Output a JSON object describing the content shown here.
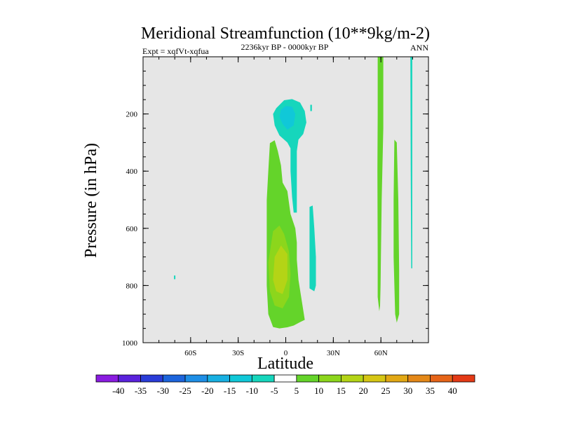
{
  "chart_data": {
    "type": "contour",
    "title": "Meridional Streamfunction (10**9kg/m-2)",
    "subtitle_left": "Expt = xqfVt-xqfua",
    "subtitle_center": "2236kyr BP - 0000kyr BP",
    "subtitle_right": "ANN",
    "xlabel": "Latitude",
    "ylabel": "Pressure (in hPa)",
    "xlim": [
      -90,
      90
    ],
    "ylim": [
      0,
      1000
    ],
    "y_inverted": true,
    "x_ticks": [
      {
        "value": -60,
        "label": "60S"
      },
      {
        "value": -30,
        "label": "30S"
      },
      {
        "value": 0,
        "label": "0"
      },
      {
        "value": 30,
        "label": "30N"
      },
      {
        "value": 60,
        "label": "60N"
      }
    ],
    "y_ticks": [
      {
        "value": 200,
        "label": "200"
      },
      {
        "value": 400,
        "label": "400"
      },
      {
        "value": 600,
        "label": "600"
      },
      {
        "value": 800,
        "label": "800"
      },
      {
        "value": 1000,
        "label": "1000"
      }
    ],
    "background_color": "#e6e6e6",
    "colorbar": {
      "labels": [
        "-40",
        "-35",
        "-30",
        "-25",
        "-20",
        "-15",
        "-10",
        "-5",
        "5",
        "10",
        "15",
        "20",
        "25",
        "30",
        "35",
        "40"
      ],
      "colors": [
        "#8a1ce0",
        "#5a22dc",
        "#2a3cd8",
        "#1c64dc",
        "#1e8ee6",
        "#18b0e2",
        "#10c8d8",
        "#16d6bc",
        "#64d42a",
        "#8cd61c",
        "#b4d416",
        "#d6c614",
        "#e2a814",
        "#e48818",
        "#e66418",
        "#e43a16"
      ]
    },
    "regions": [
      {
        "name": "neg-upper-equator",
        "level": "-5",
        "color": "#16d6bc",
        "points": [
          [
            -6,
            180
          ],
          [
            -1,
            152
          ],
          [
            4,
            148
          ],
          [
            9,
            160
          ],
          [
            12,
            190
          ],
          [
            13,
            230
          ],
          [
            11,
            270
          ],
          [
            8,
            290
          ],
          [
            7,
            330
          ],
          [
            7,
            420
          ],
          [
            7,
            510
          ],
          [
            7,
            545
          ],
          [
            5,
            545
          ],
          [
            4,
            490
          ],
          [
            3,
            400
          ],
          [
            3,
            320
          ],
          [
            1,
            300
          ],
          [
            -4,
            275
          ],
          [
            -7,
            240
          ],
          [
            -8,
            200
          ]
        ]
      },
      {
        "name": "neg-upper-core",
        "level": "-10",
        "color": "#10c8d8",
        "points": [
          [
            -3,
            185
          ],
          [
            0,
            172
          ],
          [
            4,
            175
          ],
          [
            6,
            200
          ],
          [
            5,
            240
          ],
          [
            1,
            255
          ],
          [
            -2,
            235
          ],
          [
            -4,
            210
          ]
        ]
      },
      {
        "name": "neg-lower-15N",
        "level": "-5",
        "color": "#16d6bc",
        "points": [
          [
            15,
            525
          ],
          [
            17,
            520
          ],
          [
            18,
            600
          ],
          [
            19,
            700
          ],
          [
            19,
            800
          ],
          [
            18,
            820
          ],
          [
            15,
            810
          ],
          [
            15,
            700
          ],
          [
            15,
            600
          ]
        ]
      },
      {
        "name": "neg-upper-20N-blip",
        "level": "-5",
        "color": "#16d6bc",
        "points": [
          [
            15.5,
            168
          ],
          [
            16.5,
            168
          ],
          [
            16.5,
            190
          ],
          [
            15.5,
            190
          ]
        ]
      },
      {
        "name": "neg-79N-strip",
        "level": "-5",
        "color": "#16d6bc",
        "points": [
          [
            78.6,
            0
          ],
          [
            79.8,
            0
          ],
          [
            79.8,
            740
          ],
          [
            79.1,
            740
          ],
          [
            78.8,
            400
          ]
        ]
      },
      {
        "name": "neg-70S-dot",
        "level": "-5",
        "color": "#16d6bc",
        "points": [
          [
            -70.5,
            765
          ],
          [
            -69.6,
            765
          ],
          [
            -69.6,
            778
          ],
          [
            -70.5,
            778
          ]
        ]
      },
      {
        "name": "pos-lower-equator",
        "level": "5",
        "color": "#64d42a",
        "points": [
          [
            -10,
            302
          ],
          [
            -7,
            292
          ],
          [
            -5,
            330
          ],
          [
            -3,
            380
          ],
          [
            -2,
            440
          ],
          [
            1,
            470
          ],
          [
            3,
            550
          ],
          [
            6,
            600
          ],
          [
            7,
            650
          ],
          [
            7,
            710
          ],
          [
            8,
            780
          ],
          [
            10,
            850
          ],
          [
            12,
            920
          ],
          [
            9,
            928
          ],
          [
            5,
            940
          ],
          [
            1,
            946
          ],
          [
            -4,
            950
          ],
          [
            -8,
            945
          ],
          [
            -11,
            900
          ],
          [
            -12,
            800
          ],
          [
            -12,
            700
          ],
          [
            -12,
            600
          ],
          [
            -12,
            500
          ],
          [
            -11,
            400
          ]
        ]
      },
      {
        "name": "pos-lower-mid",
        "level": "10",
        "color": "#8cd61c",
        "points": [
          [
            -8,
            610
          ],
          [
            -4,
            590
          ],
          [
            -1,
            620
          ],
          [
            2,
            680
          ],
          [
            3,
            760
          ],
          [
            2,
            840
          ],
          [
            -2,
            880
          ],
          [
            -7,
            870
          ],
          [
            -10,
            820
          ],
          [
            -11,
            720
          ]
        ]
      },
      {
        "name": "pos-lower-core",
        "level": "15",
        "color": "#b4d416",
        "points": [
          [
            -7,
            700
          ],
          [
            -3,
            660
          ],
          [
            1,
            690
          ],
          [
            1,
            780
          ],
          [
            -2,
            830
          ],
          [
            -6,
            820
          ],
          [
            -8,
            780
          ]
        ]
      },
      {
        "name": "pos-60N-strip",
        "level": "5",
        "color": "#64d42a",
        "points": [
          [
            58,
            0
          ],
          [
            61.5,
            0
          ],
          [
            61.5,
            250
          ],
          [
            60.5,
            500
          ],
          [
            60,
            700
          ],
          [
            59.8,
            800
          ],
          [
            59.5,
            870
          ],
          [
            59,
            890
          ],
          [
            58,
            840
          ],
          [
            58,
            700
          ],
          [
            57.8,
            400
          ],
          [
            58,
            200
          ]
        ]
      },
      {
        "name": "pos-70N-strip",
        "level": "5",
        "color": "#64d42a",
        "points": [
          [
            68.5,
            290
          ],
          [
            70,
            300
          ],
          [
            71,
            500
          ],
          [
            71.5,
            750
          ],
          [
            71.5,
            900
          ],
          [
            70,
            930
          ],
          [
            69,
            900
          ],
          [
            68,
            700
          ],
          [
            68,
            500
          ]
        ]
      }
    ]
  }
}
